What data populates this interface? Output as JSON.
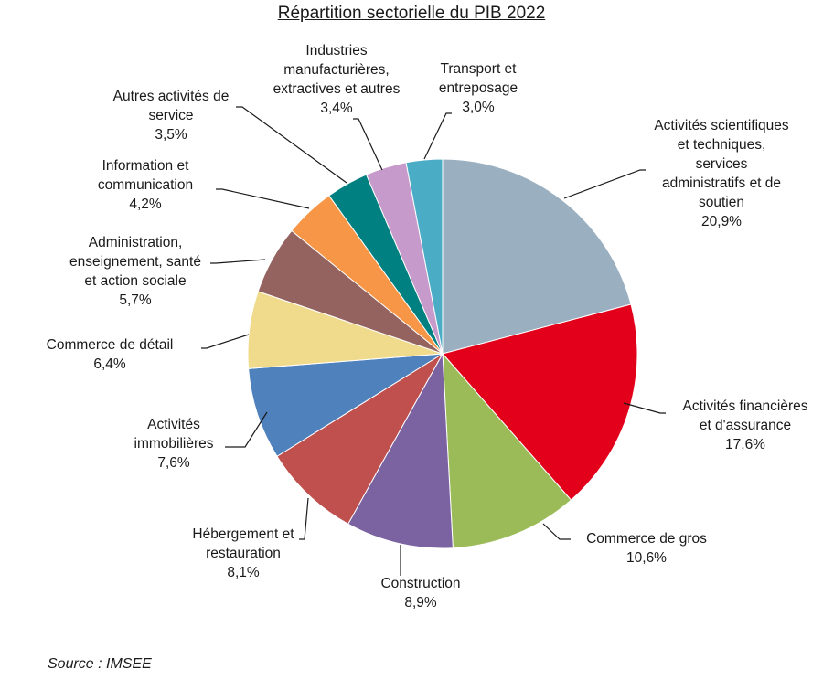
{
  "chart_data": {
    "type": "pie",
    "title": "Répartition sectorielle du PIB 2022",
    "unit": "%",
    "slices": [
      {
        "label": "Activités scientifiques et techniques, services administratifs et de soutien",
        "lines": [
          "Activités scientifiques",
          "et techniques,",
          "services",
          "administratifs et de",
          "soutien"
        ],
        "value": 20.9,
        "value_label": "20,9%",
        "color": "#9aafc0"
      },
      {
        "label": "Activités financières et d'assurance",
        "lines": [
          "Activités financières",
          "et d'assurance"
        ],
        "value": 17.6,
        "value_label": "17,6%",
        "color": "#e3001b"
      },
      {
        "label": "Commerce de gros",
        "lines": [
          "Commerce de gros"
        ],
        "value": 10.6,
        "value_label": "10,6%",
        "color": "#9bbb59"
      },
      {
        "label": "Construction",
        "lines": [
          "Construction"
        ],
        "value": 8.9,
        "value_label": "8,9%",
        "color": "#7b62a1"
      },
      {
        "label": "Hébergement et restauration",
        "lines": [
          "Hébergement et",
          "restauration"
        ],
        "value": 8.1,
        "value_label": "8,1%",
        "color": "#c0504d"
      },
      {
        "label": "Activités immobilières",
        "lines": [
          "Activités",
          "immobilières"
        ],
        "value": 7.6,
        "value_label": "7,6%",
        "color": "#4f81bd"
      },
      {
        "label": "Commerce de détail",
        "lines": [
          "Commerce de détail"
        ],
        "value": 6.4,
        "value_label": "6,4%",
        "color": "#f0db8c"
      },
      {
        "label": "Administration, enseignement, santé et action sociale",
        "lines": [
          "Administration,",
          "enseignement, santé",
          "et action sociale"
        ],
        "value": 5.7,
        "value_label": "5,7%",
        "color": "#946360"
      },
      {
        "label": "Information et communication",
        "lines": [
          "Information et",
          "communication"
        ],
        "value": 4.2,
        "value_label": "4,2%",
        "color": "#f79646"
      },
      {
        "label": "Autres activités de service",
        "lines": [
          "Autres activités de",
          "service"
        ],
        "value": 3.5,
        "value_label": "3,5%",
        "color": "#008080"
      },
      {
        "label": "Industries manufacturières, extractives et autres",
        "lines": [
          "Industries",
          "manufacturières,",
          "extractives et autres"
        ],
        "value": 3.4,
        "value_label": "3,4%",
        "color": "#c69bcc"
      },
      {
        "label": "Transport et entreposage",
        "lines": [
          "Transport et",
          "entreposage"
        ],
        "value": 3.0,
        "value_label": "3,0%",
        "color": "#4bacc6"
      }
    ]
  },
  "footer": {
    "source": "Source : IMSEE"
  }
}
